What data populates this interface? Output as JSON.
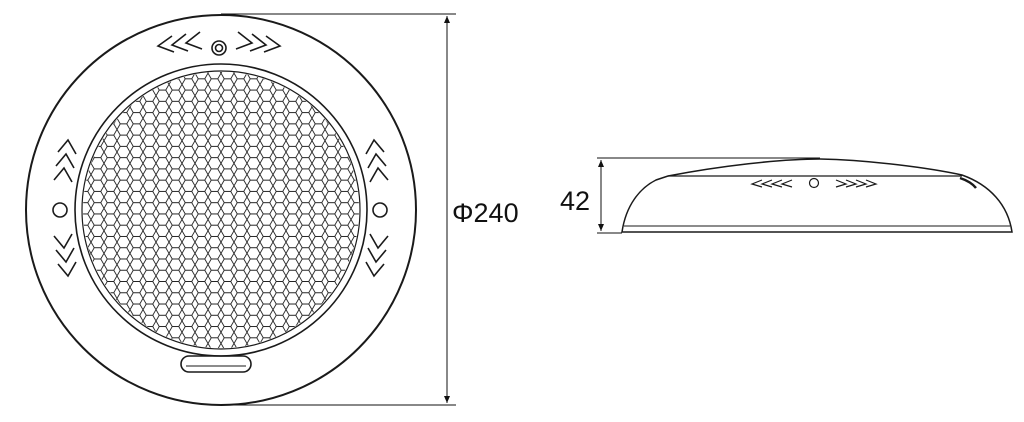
{
  "front_view": {
    "diameter_label": "Φ240"
  },
  "side_view": {
    "height_label": "42"
  },
  "colors": {
    "line": "#1a1a1a",
    "background": "#ffffff"
  }
}
